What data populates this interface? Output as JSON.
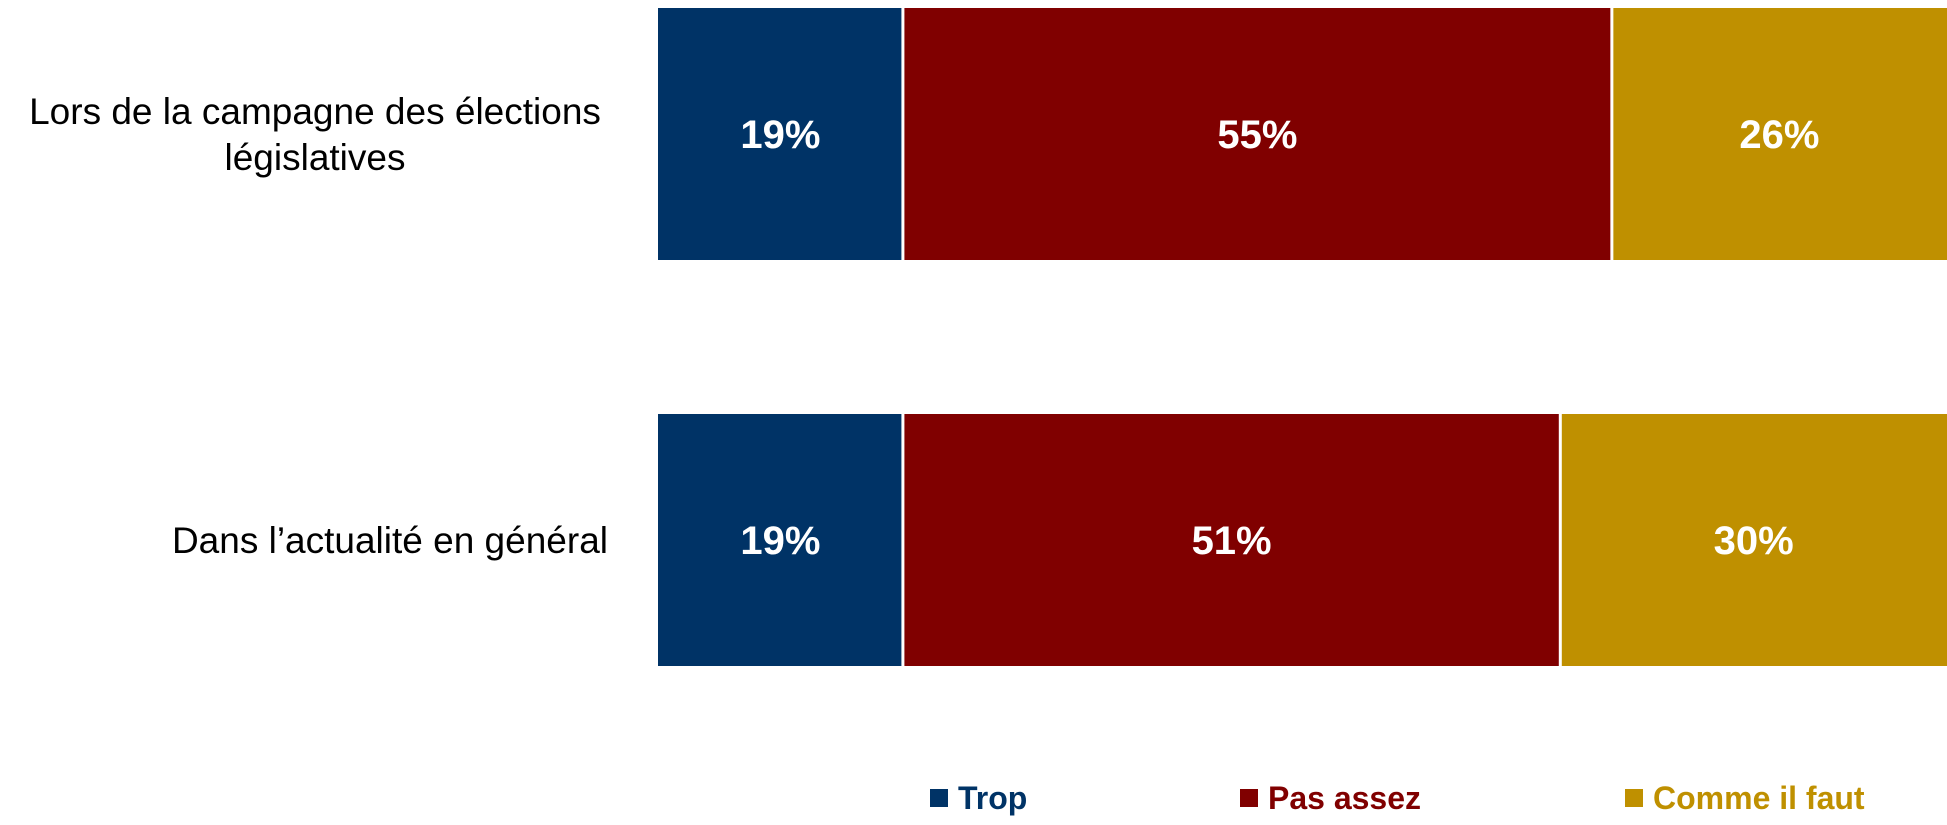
{
  "chart_data": {
    "type": "bar",
    "orientation": "horizontal",
    "stacked": true,
    "normalized_percent": true,
    "categories": [
      [
        "Lors de la campagne des élections",
        "législatives"
      ],
      [
        "Dans l’actualité en général"
      ]
    ],
    "series": [
      {
        "name": "Trop",
        "color": "#003366",
        "values": [
          19,
          19
        ]
      },
      {
        "name": "Pas assez",
        "color": "#800000",
        "values": [
          55,
          51
        ]
      },
      {
        "name": "Comme il faut",
        "color": "#BF9000",
        "values": [
          26,
          30
        ]
      }
    ],
    "value_suffix": "%",
    "xlim": [
      0,
      100
    ],
    "grid": false,
    "axes_visible": false,
    "legend_position": "bottom"
  }
}
